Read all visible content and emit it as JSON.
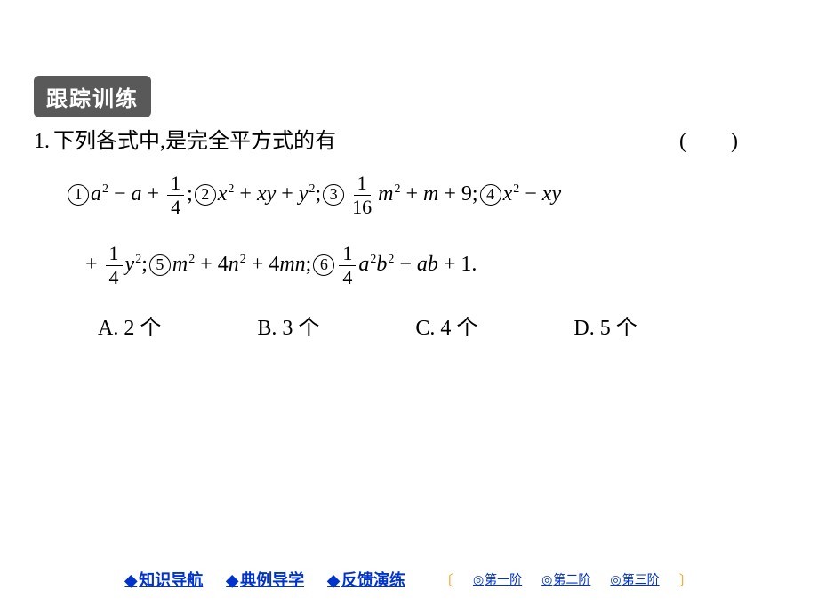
{
  "badge": {
    "text": "跟踪训练",
    "bg_color": "#595959",
    "text_color": "#ffffff"
  },
  "question": {
    "number": "1.",
    "stem": "下列各式中,是完全平方式的有",
    "paren_open": "(",
    "paren_close": ")",
    "items": {
      "c1": "1",
      "c2": "2",
      "c3": "3",
      "c4": "4",
      "c5": "5",
      "c6": "6"
    },
    "options": {
      "A": {
        "label": "A.",
        "text": "2 个"
      },
      "B": {
        "label": "B.",
        "text": "3 个"
      },
      "C": {
        "label": "C.",
        "text": "4 个"
      },
      "D": {
        "label": "D.",
        "text": "5 个"
      }
    }
  },
  "nav": {
    "main": [
      {
        "diamond": "◆",
        "text": "知识导航"
      },
      {
        "diamond": "◆",
        "text": "典例导学"
      },
      {
        "diamond": "◆",
        "text": "反馈演练"
      }
    ],
    "sub_bracket_open": "〔",
    "sub_bracket_close": "〕",
    "sub": [
      {
        "ring": "◎",
        "text": "第一阶"
      },
      {
        "ring": "◎",
        "text": "第二阶"
      },
      {
        "ring": "◎",
        "text": "第三阶"
      }
    ]
  },
  "colors": {
    "link": "#0033cc",
    "bracket": "#f5a623",
    "text": "#000000",
    "background": "#ffffff"
  }
}
